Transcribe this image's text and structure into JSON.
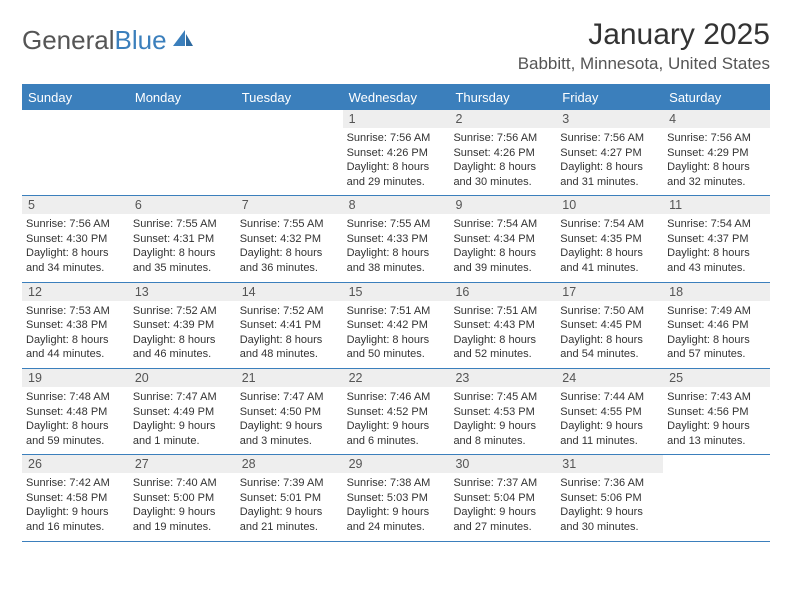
{
  "logo": {
    "part1": "General",
    "part2": "Blue"
  },
  "title": "January 2025",
  "location": "Babbitt, Minnesota, United States",
  "colors": {
    "brand_blue": "#3b7fbc",
    "text_gray": "#555555",
    "text_dark": "#333333",
    "row_bg": "#eeeeee",
    "background": "#ffffff"
  },
  "typography": {
    "title_fontsize": 30,
    "location_fontsize": 17,
    "header_fontsize": 13,
    "daynum_fontsize": 12.5,
    "body_fontsize": 11
  },
  "weekdays": [
    "Sunday",
    "Monday",
    "Tuesday",
    "Wednesday",
    "Thursday",
    "Friday",
    "Saturday"
  ],
  "weeks": [
    [
      {
        "blank": true
      },
      {
        "blank": true
      },
      {
        "blank": true
      },
      {
        "num": "1",
        "sunrise": "Sunrise: 7:56 AM",
        "sunset": "Sunset: 4:26 PM",
        "d1": "Daylight: 8 hours",
        "d2": "and 29 minutes."
      },
      {
        "num": "2",
        "sunrise": "Sunrise: 7:56 AM",
        "sunset": "Sunset: 4:26 PM",
        "d1": "Daylight: 8 hours",
        "d2": "and 30 minutes."
      },
      {
        "num": "3",
        "sunrise": "Sunrise: 7:56 AM",
        "sunset": "Sunset: 4:27 PM",
        "d1": "Daylight: 8 hours",
        "d2": "and 31 minutes."
      },
      {
        "num": "4",
        "sunrise": "Sunrise: 7:56 AM",
        "sunset": "Sunset: 4:29 PM",
        "d1": "Daylight: 8 hours",
        "d2": "and 32 minutes."
      }
    ],
    [
      {
        "num": "5",
        "sunrise": "Sunrise: 7:56 AM",
        "sunset": "Sunset: 4:30 PM",
        "d1": "Daylight: 8 hours",
        "d2": "and 34 minutes."
      },
      {
        "num": "6",
        "sunrise": "Sunrise: 7:55 AM",
        "sunset": "Sunset: 4:31 PM",
        "d1": "Daylight: 8 hours",
        "d2": "and 35 minutes."
      },
      {
        "num": "7",
        "sunrise": "Sunrise: 7:55 AM",
        "sunset": "Sunset: 4:32 PM",
        "d1": "Daylight: 8 hours",
        "d2": "and 36 minutes."
      },
      {
        "num": "8",
        "sunrise": "Sunrise: 7:55 AM",
        "sunset": "Sunset: 4:33 PM",
        "d1": "Daylight: 8 hours",
        "d2": "and 38 minutes."
      },
      {
        "num": "9",
        "sunrise": "Sunrise: 7:54 AM",
        "sunset": "Sunset: 4:34 PM",
        "d1": "Daylight: 8 hours",
        "d2": "and 39 minutes."
      },
      {
        "num": "10",
        "sunrise": "Sunrise: 7:54 AM",
        "sunset": "Sunset: 4:35 PM",
        "d1": "Daylight: 8 hours",
        "d2": "and 41 minutes."
      },
      {
        "num": "11",
        "sunrise": "Sunrise: 7:54 AM",
        "sunset": "Sunset: 4:37 PM",
        "d1": "Daylight: 8 hours",
        "d2": "and 43 minutes."
      }
    ],
    [
      {
        "num": "12",
        "sunrise": "Sunrise: 7:53 AM",
        "sunset": "Sunset: 4:38 PM",
        "d1": "Daylight: 8 hours",
        "d2": "and 44 minutes."
      },
      {
        "num": "13",
        "sunrise": "Sunrise: 7:52 AM",
        "sunset": "Sunset: 4:39 PM",
        "d1": "Daylight: 8 hours",
        "d2": "and 46 minutes."
      },
      {
        "num": "14",
        "sunrise": "Sunrise: 7:52 AM",
        "sunset": "Sunset: 4:41 PM",
        "d1": "Daylight: 8 hours",
        "d2": "and 48 minutes."
      },
      {
        "num": "15",
        "sunrise": "Sunrise: 7:51 AM",
        "sunset": "Sunset: 4:42 PM",
        "d1": "Daylight: 8 hours",
        "d2": "and 50 minutes."
      },
      {
        "num": "16",
        "sunrise": "Sunrise: 7:51 AM",
        "sunset": "Sunset: 4:43 PM",
        "d1": "Daylight: 8 hours",
        "d2": "and 52 minutes."
      },
      {
        "num": "17",
        "sunrise": "Sunrise: 7:50 AM",
        "sunset": "Sunset: 4:45 PM",
        "d1": "Daylight: 8 hours",
        "d2": "and 54 minutes."
      },
      {
        "num": "18",
        "sunrise": "Sunrise: 7:49 AM",
        "sunset": "Sunset: 4:46 PM",
        "d1": "Daylight: 8 hours",
        "d2": "and 57 minutes."
      }
    ],
    [
      {
        "num": "19",
        "sunrise": "Sunrise: 7:48 AM",
        "sunset": "Sunset: 4:48 PM",
        "d1": "Daylight: 8 hours",
        "d2": "and 59 minutes."
      },
      {
        "num": "20",
        "sunrise": "Sunrise: 7:47 AM",
        "sunset": "Sunset: 4:49 PM",
        "d1": "Daylight: 9 hours",
        "d2": "and 1 minute."
      },
      {
        "num": "21",
        "sunrise": "Sunrise: 7:47 AM",
        "sunset": "Sunset: 4:50 PM",
        "d1": "Daylight: 9 hours",
        "d2": "and 3 minutes."
      },
      {
        "num": "22",
        "sunrise": "Sunrise: 7:46 AM",
        "sunset": "Sunset: 4:52 PM",
        "d1": "Daylight: 9 hours",
        "d2": "and 6 minutes."
      },
      {
        "num": "23",
        "sunrise": "Sunrise: 7:45 AM",
        "sunset": "Sunset: 4:53 PM",
        "d1": "Daylight: 9 hours",
        "d2": "and 8 minutes."
      },
      {
        "num": "24",
        "sunrise": "Sunrise: 7:44 AM",
        "sunset": "Sunset: 4:55 PM",
        "d1": "Daylight: 9 hours",
        "d2": "and 11 minutes."
      },
      {
        "num": "25",
        "sunrise": "Sunrise: 7:43 AM",
        "sunset": "Sunset: 4:56 PM",
        "d1": "Daylight: 9 hours",
        "d2": "and 13 minutes."
      }
    ],
    [
      {
        "num": "26",
        "sunrise": "Sunrise: 7:42 AM",
        "sunset": "Sunset: 4:58 PM",
        "d1": "Daylight: 9 hours",
        "d2": "and 16 minutes."
      },
      {
        "num": "27",
        "sunrise": "Sunrise: 7:40 AM",
        "sunset": "Sunset: 5:00 PM",
        "d1": "Daylight: 9 hours",
        "d2": "and 19 minutes."
      },
      {
        "num": "28",
        "sunrise": "Sunrise: 7:39 AM",
        "sunset": "Sunset: 5:01 PM",
        "d1": "Daylight: 9 hours",
        "d2": "and 21 minutes."
      },
      {
        "num": "29",
        "sunrise": "Sunrise: 7:38 AM",
        "sunset": "Sunset: 5:03 PM",
        "d1": "Daylight: 9 hours",
        "d2": "and 24 minutes."
      },
      {
        "num": "30",
        "sunrise": "Sunrise: 7:37 AM",
        "sunset": "Sunset: 5:04 PM",
        "d1": "Daylight: 9 hours",
        "d2": "and 27 minutes."
      },
      {
        "num": "31",
        "sunrise": "Sunrise: 7:36 AM",
        "sunset": "Sunset: 5:06 PM",
        "d1": "Daylight: 9 hours",
        "d2": "and 30 minutes."
      },
      {
        "blank": true
      }
    ]
  ]
}
